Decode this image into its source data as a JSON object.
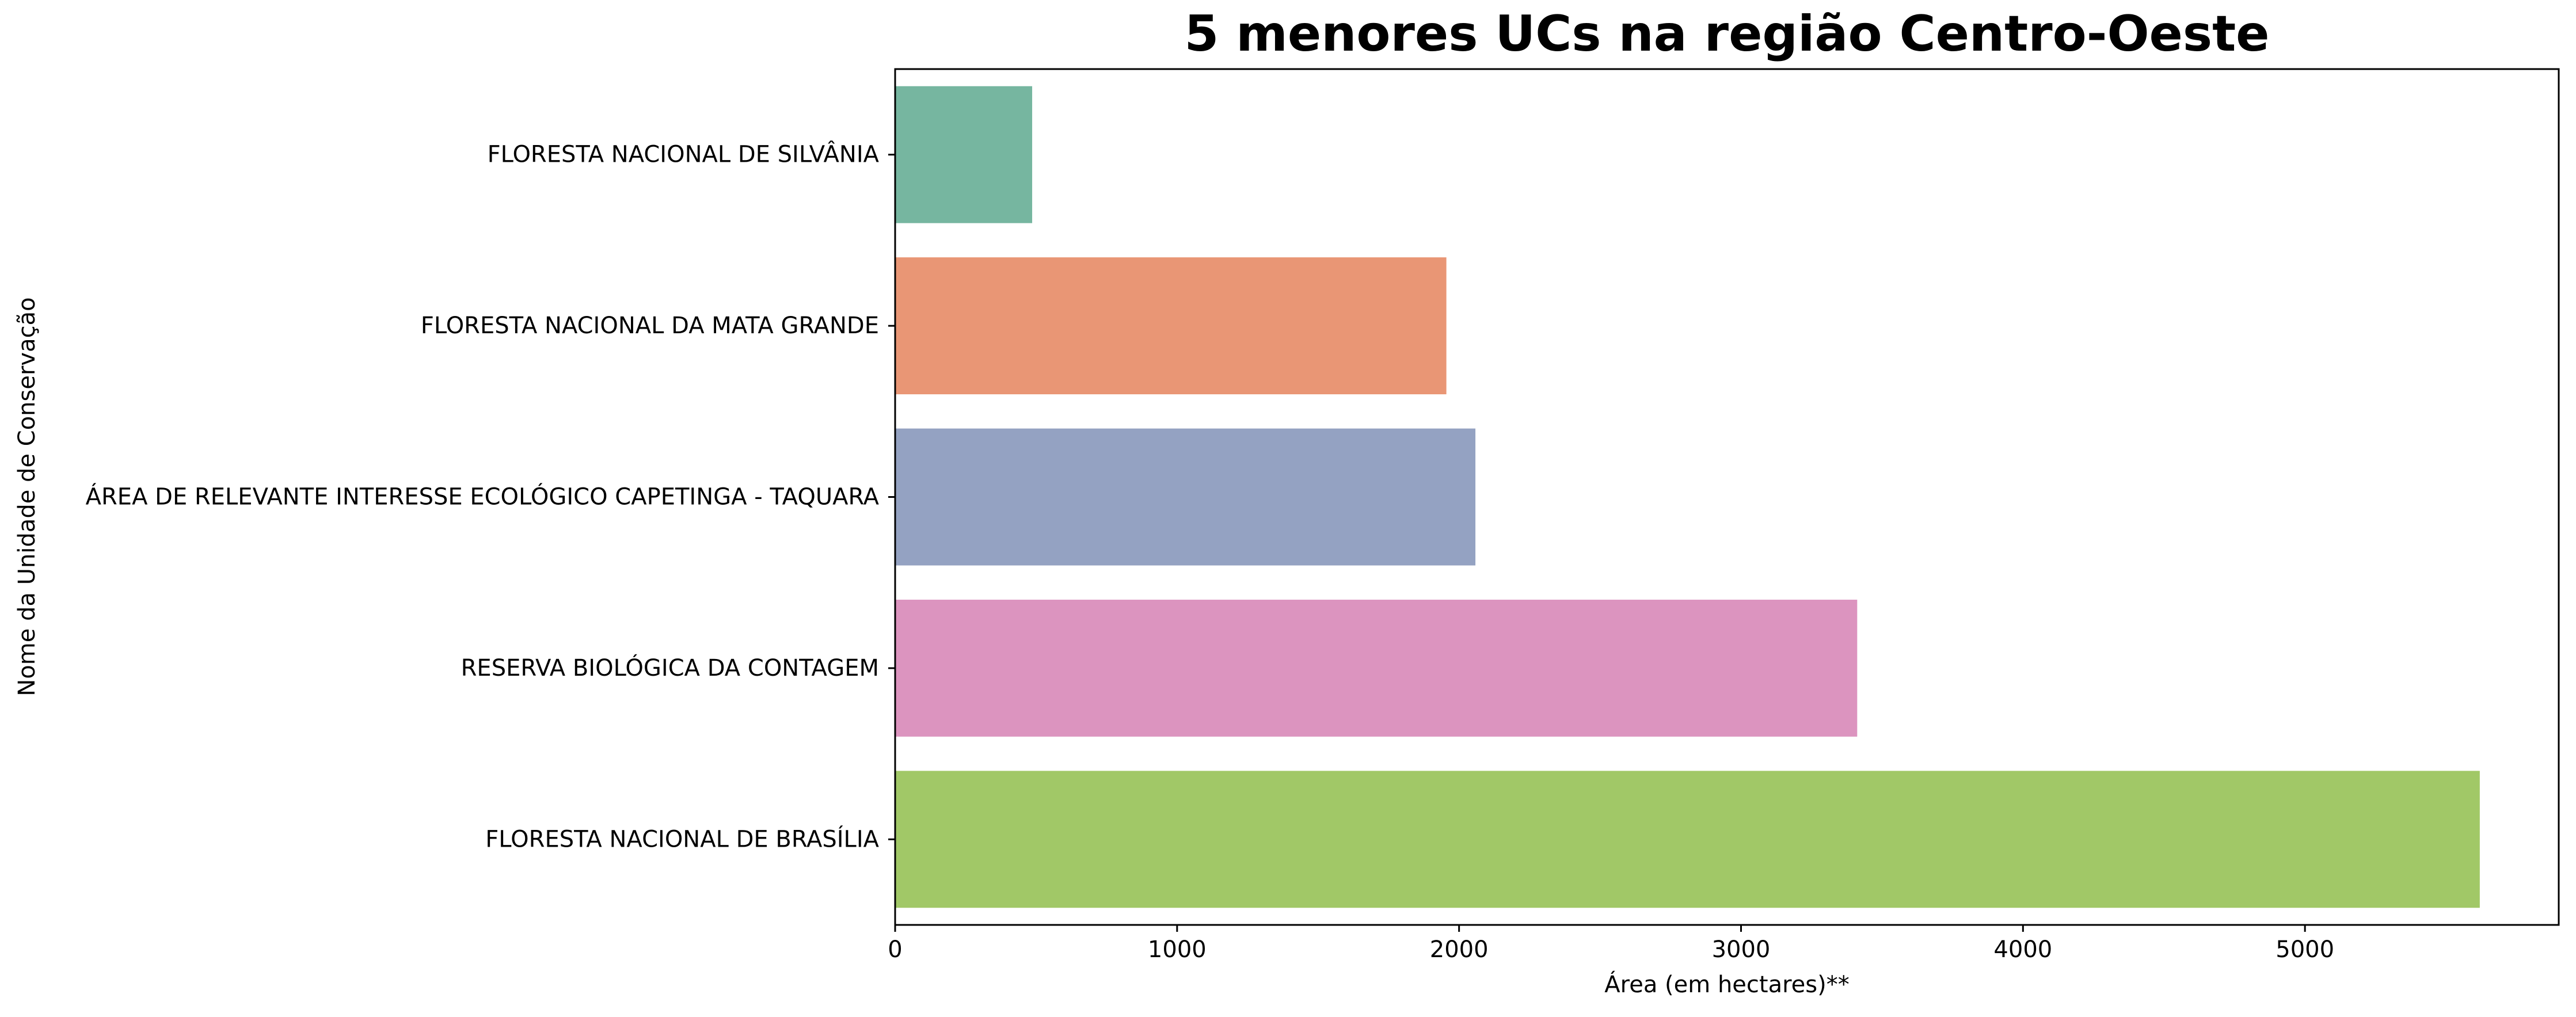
{
  "chart_data": {
    "type": "bar",
    "orientation": "horizontal",
    "title": "5 menores UCs na região Centro-Oeste",
    "xlabel": "Área (em hectares)**",
    "ylabel": "Nome da Unidade de Conservação",
    "categories": [
      "FLORESTA NACIONAL DE SILVÂNIA",
      "FLORESTA NACIONAL DA MATA GRANDE",
      "ÁREA DE RELEVANTE INTERESSE ECOLÓGICO CAPETINGA - TAQUARA",
      "RESERVA BIOLÓGICA DA CONTAGEM",
      "FLORESTA NACIONAL DE BRASÍLIA"
    ],
    "values": [
      486,
      1955,
      2058,
      3412,
      5620
    ],
    "colors": [
      "#76b6a0",
      "#e99675",
      "#94a2c2",
      "#dc94bf",
      "#a1c867"
    ],
    "xlim": [
      0,
      5900
    ],
    "xticks": [
      0,
      1000,
      2000,
      3000,
      4000,
      5000
    ],
    "grid": false,
    "legend": "none"
  }
}
